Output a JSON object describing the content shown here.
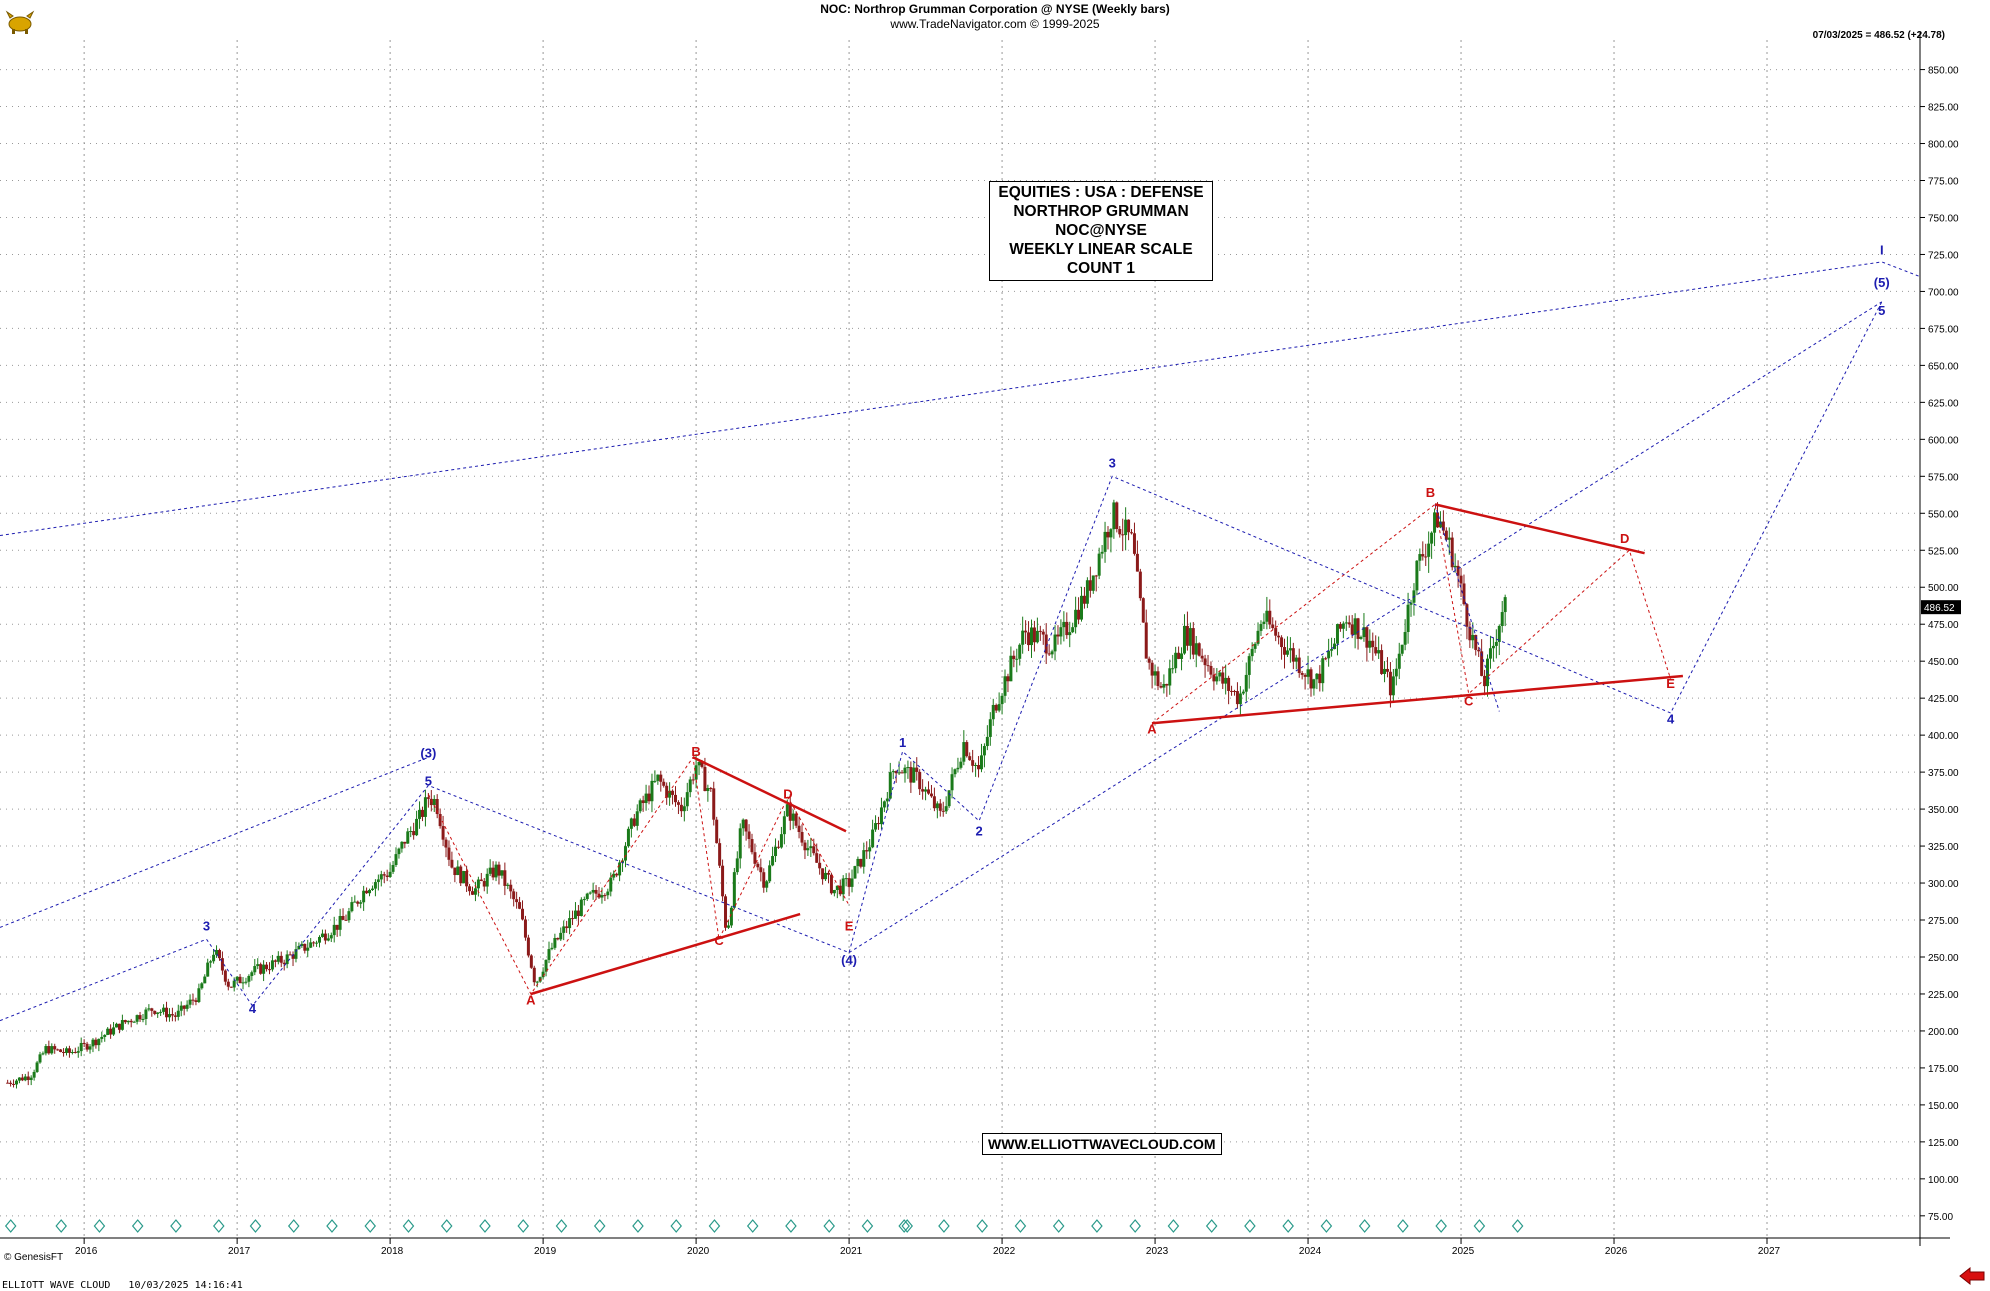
{
  "header": {
    "title": "NOC:  Northrop Grumman Corporation @ NYSE  (Weekly bars)",
    "source": "www.TradeNavigator.com © 1999-2025"
  },
  "last_info": "07/03/2025 = 486.52 (+24.78)",
  "price_badge": "486.52",
  "info_box": {
    "lines": [
      "EQUITIES : USA : DEFENSE",
      "NORTHROP GRUMMAN",
      "NOC@NYSE",
      "WEEKLY LINEAR SCALE",
      "COUNT 1"
    ]
  },
  "website": "WWW.ELLIOTTWAVECLOUD.COM",
  "genesis": "© GenesisFT",
  "footer": "ELLIOTT WAVE CLOUD   10/03/2025 14:16:41",
  "colors": {
    "bull": "#1a7a1a",
    "bear": "#8b1a1a",
    "wave_blue": "#1c1cb0",
    "wave_red": "#cc1111",
    "grid": "#999999",
    "diamond": "#2a9a8a"
  },
  "icons": [
    "bull-logo-icon",
    "left-arrow-icon"
  ],
  "chart_data": {
    "type": "candlestick",
    "title": "NOC:  Northrop Grumman Corporation @ NYSE  (Weekly bars)",
    "ylim": [
      60,
      870
    ],
    "y_ticks": [
      75,
      100,
      125,
      150,
      175,
      200,
      225,
      250,
      275,
      300,
      325,
      350,
      375,
      400,
      425,
      450,
      475,
      500,
      525,
      550,
      575,
      600,
      625,
      650,
      675,
      700,
      725,
      750,
      775,
      800,
      825,
      850
    ],
    "x_ticks": [
      2016,
      2017,
      2018,
      2019,
      2020,
      2021,
      2022,
      2023,
      2024,
      2025,
      2026,
      2027
    ],
    "xlim": [
      2015.45,
      2028.0
    ],
    "grid": true,
    "price_path": [
      [
        2015.5,
        165
      ],
      [
        2015.65,
        170
      ],
      [
        2015.75,
        188
      ],
      [
        2015.9,
        185
      ],
      [
        2016.05,
        192
      ],
      [
        2016.25,
        205
      ],
      [
        2016.45,
        215
      ],
      [
        2016.6,
        210
      ],
      [
        2016.75,
        225
      ],
      [
        2016.85,
        255
      ],
      [
        2016.95,
        230
      ],
      [
        2017.1,
        240
      ],
      [
        2017.3,
        248
      ],
      [
        2017.5,
        260
      ],
      [
        2017.7,
        275
      ],
      [
        2017.85,
        298
      ],
      [
        2018.0,
        308
      ],
      [
        2018.1,
        330
      ],
      [
        2018.2,
        345
      ],
      [
        2018.25,
        358
      ],
      [
        2018.3,
        355
      ],
      [
        2018.4,
        312
      ],
      [
        2018.55,
        295
      ],
      [
        2018.7,
        310
      ],
      [
        2018.85,
        280
      ],
      [
        2018.95,
        232
      ],
      [
        2019.05,
        255
      ],
      [
        2019.2,
        278
      ],
      [
        2019.3,
        290
      ],
      [
        2019.45,
        300
      ],
      [
        2019.6,
        345
      ],
      [
        2019.75,
        370
      ],
      [
        2019.9,
        350
      ],
      [
        2020.0,
        380
      ],
      [
        2020.1,
        360
      ],
      [
        2020.2,
        265
      ],
      [
        2020.3,
        340
      ],
      [
        2020.45,
        300
      ],
      [
        2020.6,
        350
      ],
      [
        2020.75,
        320
      ],
      [
        2020.9,
        295
      ],
      [
        2021.0,
        300
      ],
      [
        2021.15,
        330
      ],
      [
        2021.3,
        380
      ],
      [
        2021.45,
        370
      ],
      [
        2021.6,
        345
      ],
      [
        2021.75,
        395
      ],
      [
        2021.85,
        375
      ],
      [
        2021.95,
        420
      ],
      [
        2022.05,
        445
      ],
      [
        2022.15,
        470
      ],
      [
        2022.35,
        460
      ],
      [
        2022.55,
        495
      ],
      [
        2022.72,
        550
      ],
      [
        2022.85,
        530
      ],
      [
        2022.95,
        450
      ],
      [
        2023.05,
        430
      ],
      [
        2023.2,
        470
      ],
      [
        2023.4,
        440
      ],
      [
        2023.55,
        425
      ],
      [
        2023.7,
        480
      ],
      [
        2023.85,
        460
      ],
      [
        2024.05,
        435
      ],
      [
        2024.25,
        480
      ],
      [
        2024.4,
        465
      ],
      [
        2024.55,
        430
      ],
      [
        2024.7,
        510
      ],
      [
        2024.85,
        548
      ],
      [
        2024.95,
        520
      ],
      [
        2025.05,
        475
      ],
      [
        2025.15,
        435
      ],
      [
        2025.28,
        490
      ],
      [
        2025.3,
        486.52
      ]
    ],
    "wave_labels": [
      {
        "text": "3",
        "x": 2016.8,
        "y": 268,
        "color": "blue"
      },
      {
        "text": "4",
        "x": 2017.1,
        "y": 212,
        "color": "blue"
      },
      {
        "text": "(3)",
        "x": 2018.25,
        "y": 385,
        "color": "blue"
      },
      {
        "text": "5",
        "x": 2018.25,
        "y": 366,
        "color": "blue"
      },
      {
        "text": "A",
        "x": 2018.92,
        "y": 218,
        "color": "red"
      },
      {
        "text": "B",
        "x": 2020.0,
        "y": 386,
        "color": "red"
      },
      {
        "text": "C",
        "x": 2020.15,
        "y": 258,
        "color": "red"
      },
      {
        "text": "D",
        "x": 2020.6,
        "y": 357,
        "color": "red"
      },
      {
        "text": "E",
        "x": 2021.0,
        "y": 268,
        "color": "red"
      },
      {
        "text": "(4)",
        "x": 2021.0,
        "y": 245,
        "color": "blue"
      },
      {
        "text": "1",
        "x": 2021.35,
        "y": 392,
        "color": "blue"
      },
      {
        "text": "2",
        "x": 2021.85,
        "y": 332,
        "color": "blue"
      },
      {
        "text": "3",
        "x": 2022.72,
        "y": 581,
        "color": "blue"
      },
      {
        "text": "A",
        "x": 2022.98,
        "y": 401,
        "color": "red"
      },
      {
        "text": "B",
        "x": 2024.8,
        "y": 561,
        "color": "red"
      },
      {
        "text": "C",
        "x": 2025.05,
        "y": 420,
        "color": "red"
      },
      {
        "text": "D",
        "x": 2026.07,
        "y": 530,
        "color": "red"
      },
      {
        "text": "E",
        "x": 2026.37,
        "y": 432,
        "color": "red"
      },
      {
        "text": "4",
        "x": 2026.37,
        "y": 408,
        "color": "blue"
      },
      {
        "text": "(5)",
        "x": 2027.75,
        "y": 703,
        "color": "blue"
      },
      {
        "text": "5",
        "x": 2027.75,
        "y": 684,
        "color": "blue"
      },
      {
        "text": "I",
        "x": 2027.75,
        "y": 725,
        "color": "blue"
      }
    ],
    "red_trendlines": [
      [
        [
          2018.92,
          225
        ],
        [
          2020.68,
          279
        ]
      ],
      [
        [
          2019.98,
          385
        ],
        [
          2020.98,
          335
        ]
      ],
      [
        [
          2022.98,
          408
        ],
        [
          2026.45,
          440
        ]
      ],
      [
        [
          2024.83,
          556
        ],
        [
          2026.2,
          523
        ]
      ]
    ],
    "blue_dotted_lines": [
      [
        [
          2015.45,
          535
        ],
        [
          2027.75,
          720
        ],
        [
          2028.0,
          710
        ]
      ],
      [
        [
          2015.45,
          270
        ],
        [
          2018.25,
          385
        ]
      ],
      [
        [
          2015.45,
          207
        ],
        [
          2016.8,
          262
        ],
        [
          2017.1,
          217
        ],
        [
          2018.25,
          366
        ],
        [
          2021.0,
          253
        ],
        [
          2021.35,
          389
        ],
        [
          2021.85,
          342
        ],
        [
          2022.72,
          575
        ],
        [
          2026.37,
          415
        ],
        [
          2027.75,
          693
        ]
      ],
      [
        [
          2024.83,
          556
        ],
        [
          2025.25,
          416
        ]
      ],
      [
        [
          2021.0,
          253
        ],
        [
          2027.75,
          693
        ]
      ]
    ],
    "red_dotted_lines": [
      [
        [
          2018.25,
          360
        ],
        [
          2018.92,
          225
        ],
        [
          2019.98,
          385
        ],
        [
          2020.15,
          262
        ],
        [
          2020.6,
          358
        ],
        [
          2021.0,
          285
        ]
      ],
      [
        [
          2022.98,
          408
        ],
        [
          2024.83,
          556
        ],
        [
          2025.05,
          428
        ],
        [
          2026.1,
          525
        ],
        [
          2026.37,
          438
        ]
      ]
    ]
  }
}
